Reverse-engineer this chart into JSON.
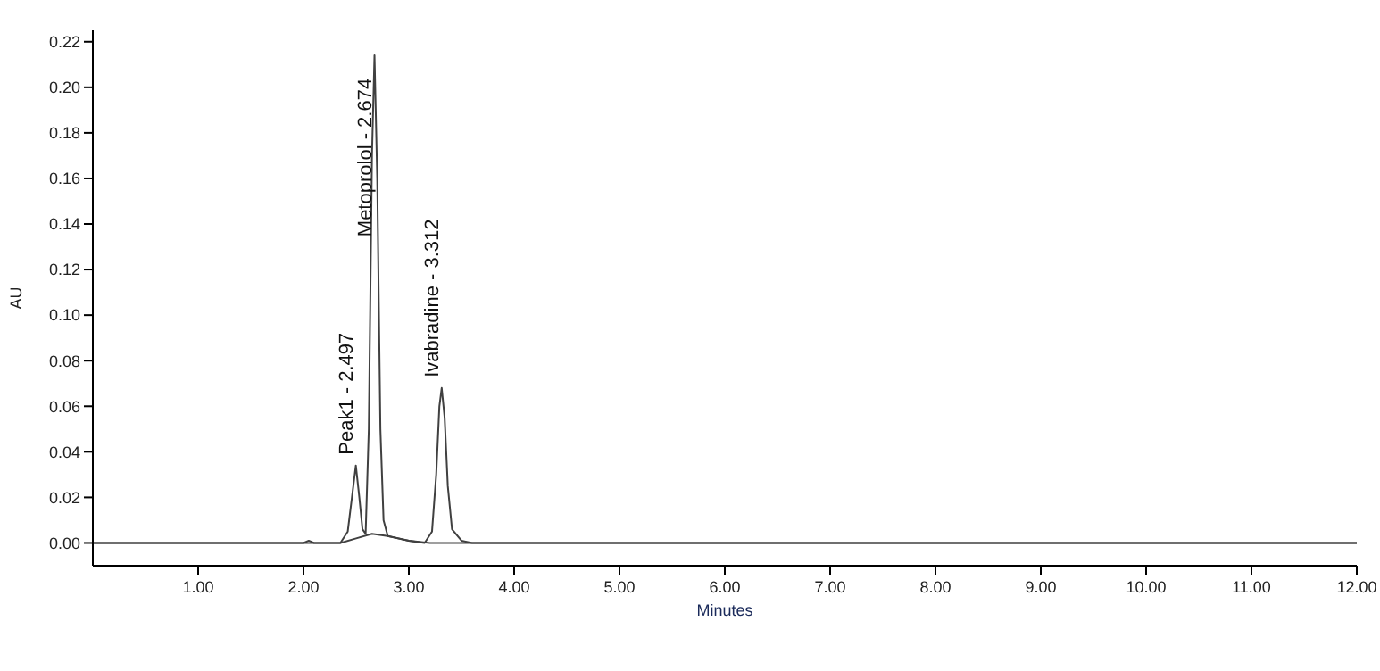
{
  "chart_data": {
    "type": "line",
    "xlabel": "Minutes",
    "ylabel": "AU",
    "xlim": [
      0,
      12
    ],
    "ylim": [
      -0.01,
      0.225
    ],
    "xticks": [
      {
        "value": 1,
        "label": "1.00"
      },
      {
        "value": 2,
        "label": "2.00"
      },
      {
        "value": 3,
        "label": "3.00"
      },
      {
        "value": 4,
        "label": "4.00"
      },
      {
        "value": 5,
        "label": "5.00"
      },
      {
        "value": 6,
        "label": "6.00"
      },
      {
        "value": 7,
        "label": "7.00"
      },
      {
        "value": 8,
        "label": "8.00"
      },
      {
        "value": 9,
        "label": "9.00"
      },
      {
        "value": 10,
        "label": "10.00"
      },
      {
        "value": 11,
        "label": "11.00"
      },
      {
        "value": 12,
        "label": "12.00"
      }
    ],
    "yticks": [
      {
        "value": 0,
        "label": "0.00"
      },
      {
        "value": 0.02,
        "label": "0.02"
      },
      {
        "value": 0.04,
        "label": "0.04"
      },
      {
        "value": 0.06,
        "label": "0.06"
      },
      {
        "value": 0.08,
        "label": "0.08"
      },
      {
        "value": 0.1,
        "label": "0.10"
      },
      {
        "value": 0.12,
        "label": "0.12"
      },
      {
        "value": 0.14,
        "label": "0.14"
      },
      {
        "value": 0.16,
        "label": "0.16"
      },
      {
        "value": 0.18,
        "label": "0.18"
      },
      {
        "value": 0.2,
        "label": "0.20"
      },
      {
        "value": 0.22,
        "label": "0.22"
      }
    ],
    "grid": false,
    "marker": "none",
    "line_style": "solid",
    "series": [
      {
        "color": "#404040",
        "x": [
          0,
          2.0,
          2.05,
          2.1,
          2.35,
          2.42,
          2.46,
          2.497,
          2.53,
          2.56,
          2.59,
          2.62,
          2.65,
          2.674,
          2.7,
          2.73,
          2.76,
          2.8,
          2.9,
          3.0,
          3.15,
          3.22,
          3.26,
          3.29,
          3.312,
          3.34,
          3.37,
          3.41,
          3.5,
          3.6,
          12
        ],
        "values": [
          0,
          0,
          0.001,
          0,
          0,
          0.005,
          0.02,
          0.034,
          0.02,
          0.006,
          0.004,
          0.05,
          0.17,
          0.214,
          0.16,
          0.05,
          0.01,
          0.003,
          0.002,
          0.001,
          0,
          0.005,
          0.03,
          0.06,
          0.068,
          0.055,
          0.025,
          0.006,
          0.001,
          0,
          0
        ]
      },
      {
        "color": "#404040",
        "x": [
          0,
          2.35,
          2.5,
          2.65,
          2.8,
          3.0,
          3.2,
          12
        ],
        "values": [
          0,
          0,
          0.002,
          0.004,
          0.003,
          0.001,
          0,
          0
        ]
      }
    ],
    "annotations": [
      {
        "text": "Peak1 - 2.497",
        "x": 2.497,
        "y": 0.034
      },
      {
        "text": "Metoprolol - 2.674",
        "x": 2.674,
        "y": 0.214
      },
      {
        "text": "Ivabradine - 3.312",
        "x": 3.312,
        "y": 0.068
      }
    ]
  }
}
